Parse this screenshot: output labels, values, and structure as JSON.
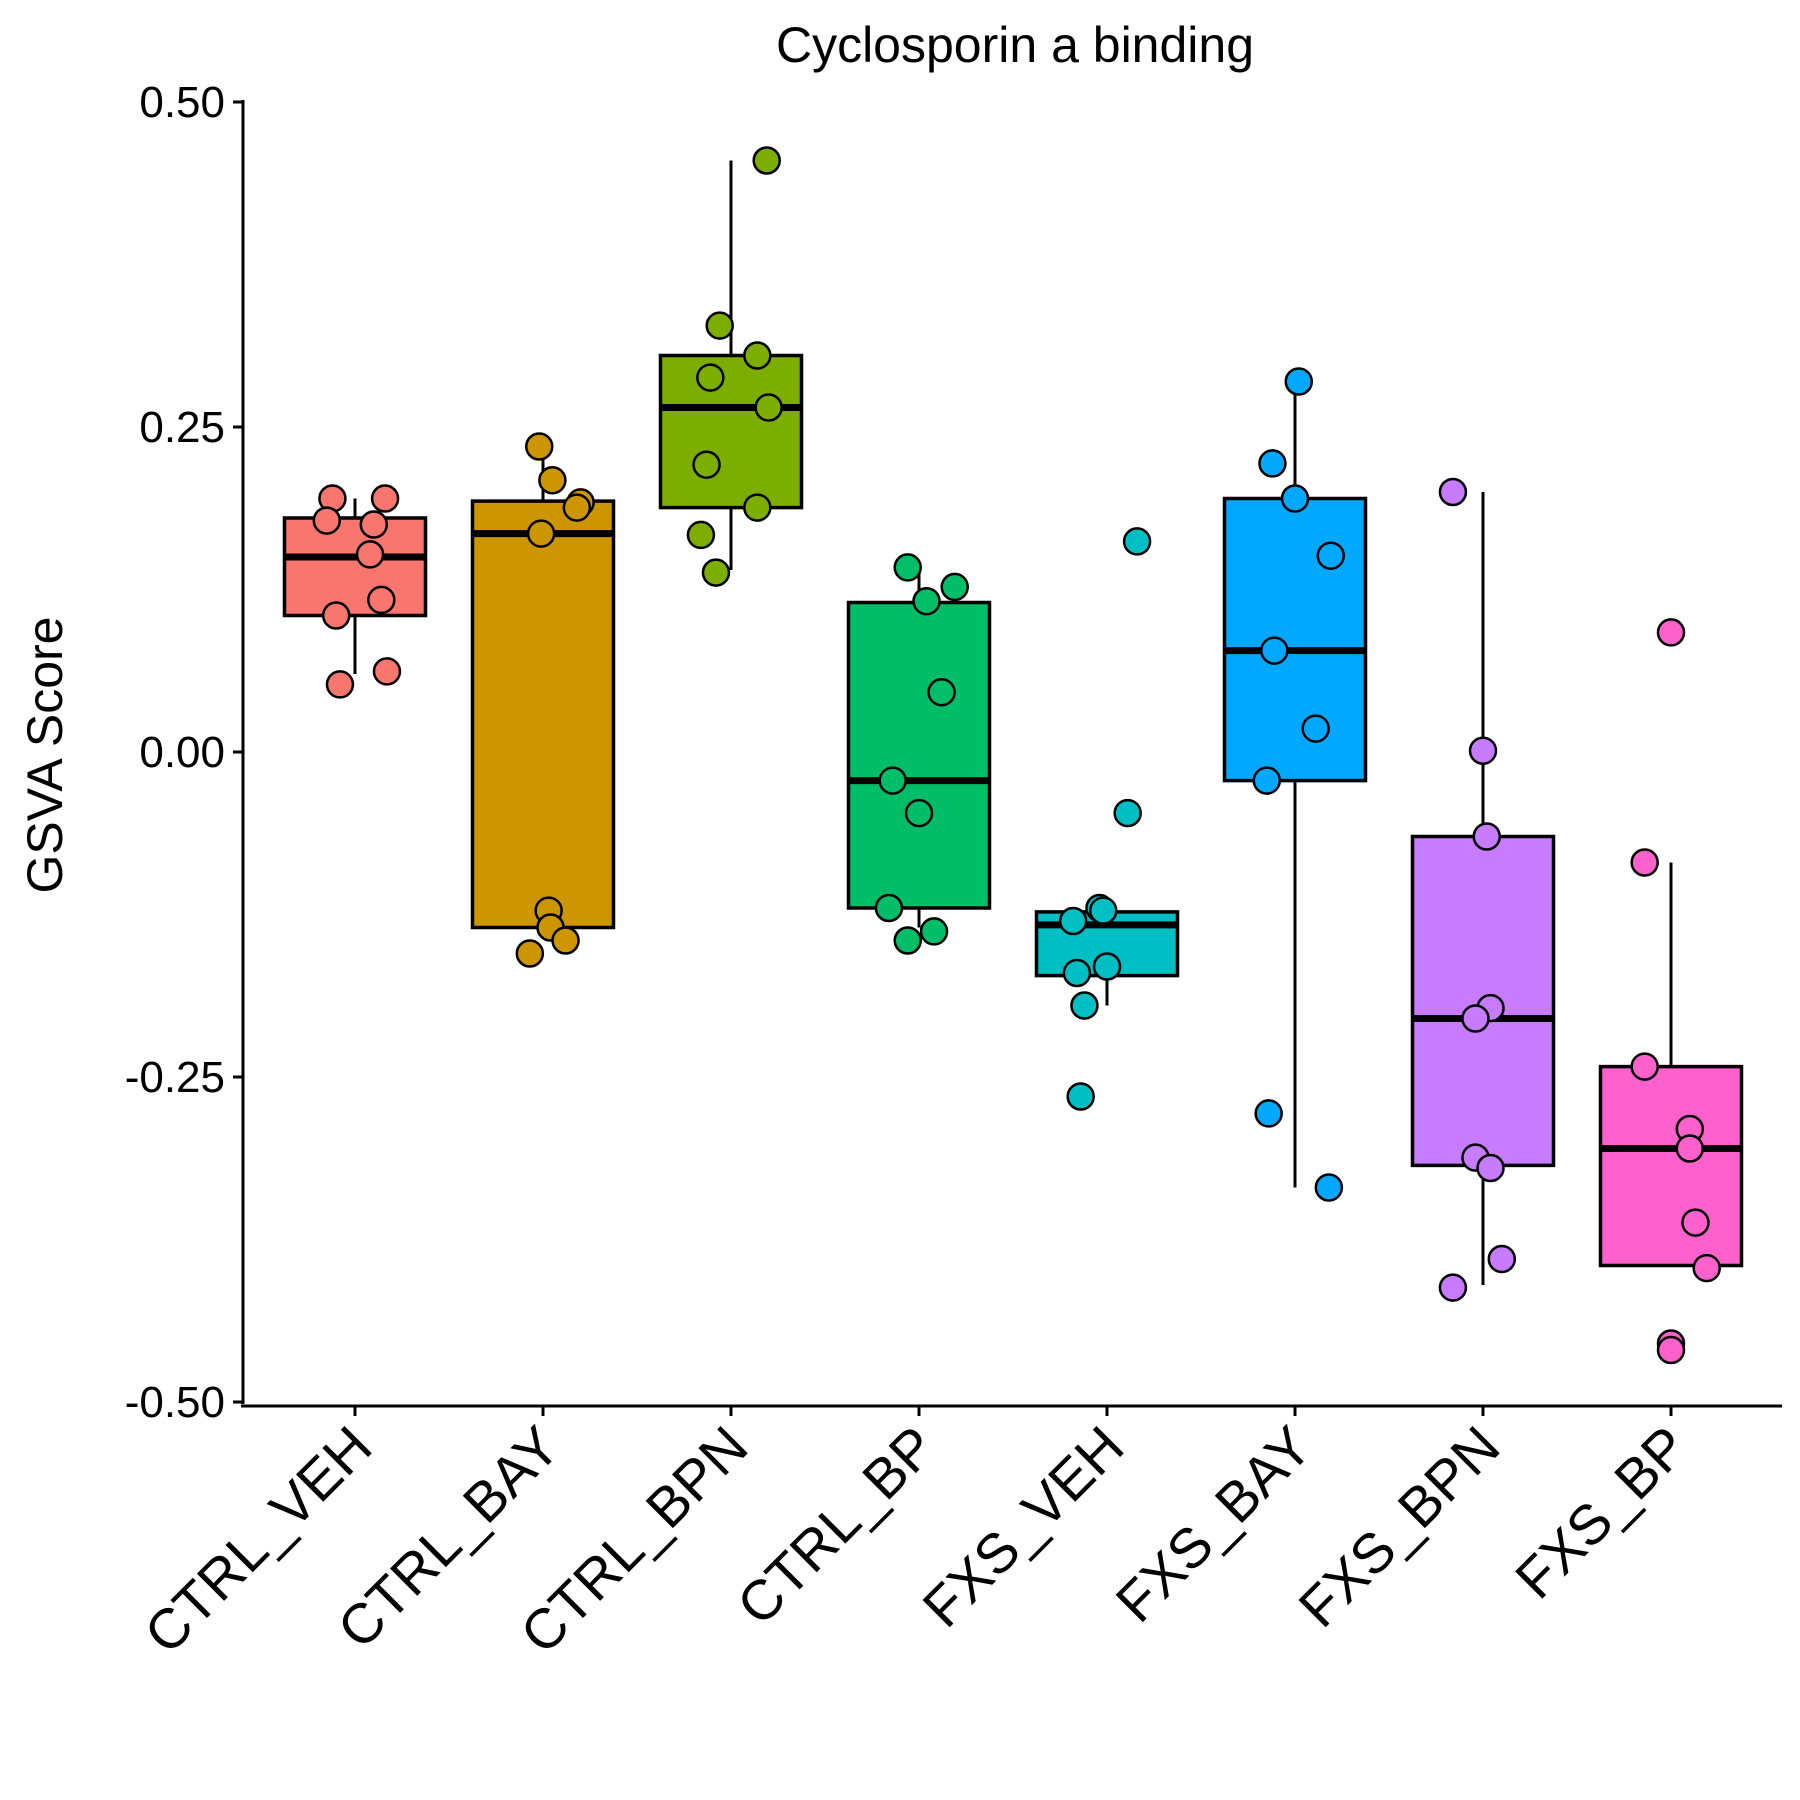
{
  "chart_data": {
    "type": "box",
    "title": "Cyclosporin a binding",
    "xlabel": "",
    "ylabel": "GSVA Score",
    "ylim": [
      -0.5,
      0.5
    ],
    "yticks": [
      "-0.50",
      "-0.25",
      "0.00",
      "0.25",
      "0.50"
    ],
    "grid": false,
    "legend": "none",
    "categories": [
      "CTRL_VEH",
      "CTRL_BAY",
      "CTRL_BPN",
      "CTRL_BP",
      "FXS_VEH",
      "FXS_BAY",
      "FXS_BPN",
      "FXS_BP"
    ],
    "colors": [
      "#F8766D",
      "#CD9600",
      "#7CAE00",
      "#00BE67",
      "#00BFC4",
      "#00A9FF",
      "#C77CFF",
      "#FF61CC"
    ],
    "boxes": [
      {
        "whisker_low": 0.06,
        "q1": 0.105,
        "median": 0.15,
        "q3": 0.18,
        "whisker_high": 0.195
      },
      {
        "whisker_low": -0.135,
        "q1": -0.135,
        "median": 0.168,
        "q3": 0.193,
        "whisker_high": 0.235
      },
      {
        "whisker_low": 0.14,
        "q1": 0.188,
        "median": 0.265,
        "q3": 0.305,
        "whisker_high": 0.455
      },
      {
        "whisker_low": -0.135,
        "q1": -0.12,
        "median": -0.022,
        "q3": 0.115,
        "whisker_high": 0.14
      },
      {
        "whisker_low": -0.195,
        "q1": -0.172,
        "median": -0.133,
        "q3": -0.123,
        "whisker_high": -0.123
      },
      {
        "whisker_low": -0.335,
        "q1": -0.022,
        "median": 0.078,
        "q3": 0.195,
        "whisker_high": 0.285
      },
      {
        "whisker_low": -0.41,
        "q1": -0.318,
        "median": -0.205,
        "q3": -0.065,
        "whisker_high": 0.2
      },
      {
        "whisker_low": -0.395,
        "q1": -0.395,
        "median": -0.305,
        "q3": -0.242,
        "whisker_high": -0.085
      }
    ],
    "points": [
      [
        0.195,
        0.195,
        0.178,
        0.175,
        0.152,
        0.117,
        0.105,
        0.062,
        0.052
      ],
      [
        0.235,
        0.209,
        0.192,
        0.188,
        0.168,
        -0.122,
        -0.135,
        -0.145,
        -0.155
      ],
      [
        0.455,
        0.328,
        0.305,
        0.288,
        0.265,
        0.221,
        0.188,
        0.167,
        0.138
      ],
      [
        0.142,
        0.127,
        0.116,
        0.046,
        -0.022,
        -0.047,
        -0.12,
        -0.138,
        -0.145
      ],
      [
        0.162,
        -0.047,
        -0.12,
        -0.122,
        -0.13,
        -0.165,
        -0.17,
        -0.195,
        -0.265
      ],
      [
        0.285,
        0.222,
        0.195,
        0.151,
        0.078,
        0.018,
        -0.022,
        -0.278,
        -0.335
      ],
      [
        0.2,
        0.001,
        -0.065,
        -0.197,
        -0.205,
        -0.312,
        -0.32,
        -0.39,
        -0.412
      ],
      [
        0.092,
        -0.085,
        -0.242,
        -0.29,
        -0.305,
        -0.362,
        -0.397,
        -0.455,
        -0.46
      ]
    ],
    "point_offsets": [
      [
        -0.12,
        0.16,
        -0.15,
        0.1,
        0.08,
        0.14,
        -0.1,
        0.17,
        -0.08
      ],
      [
        -0.02,
        0.05,
        0.2,
        0.18,
        -0.01,
        0.03,
        0.04,
        0.12,
        -0.07
      ],
      [
        0.19,
        -0.06,
        0.14,
        -0.11,
        0.2,
        -0.13,
        0.14,
        -0.16,
        -0.08
      ],
      [
        -0.06,
        0.19,
        0.04,
        0.12,
        -0.14,
        0.0,
        -0.16,
        0.08,
        -0.06
      ],
      [
        0.16,
        0.11,
        -0.04,
        -0.02,
        -0.18,
        0.0,
        -0.16,
        -0.12,
        -0.14
      ],
      [
        0.02,
        -0.12,
        0.0,
        0.19,
        -0.11,
        0.11,
        -0.15,
        -0.14,
        0.18
      ],
      [
        -0.16,
        0.0,
        0.02,
        0.04,
        -0.04,
        -0.04,
        0.04,
        0.1,
        -0.16
      ],
      [
        0.0,
        -0.14,
        -0.14,
        0.1,
        0.1,
        0.13,
        0.19,
        0.0,
        0.0
      ]
    ]
  }
}
